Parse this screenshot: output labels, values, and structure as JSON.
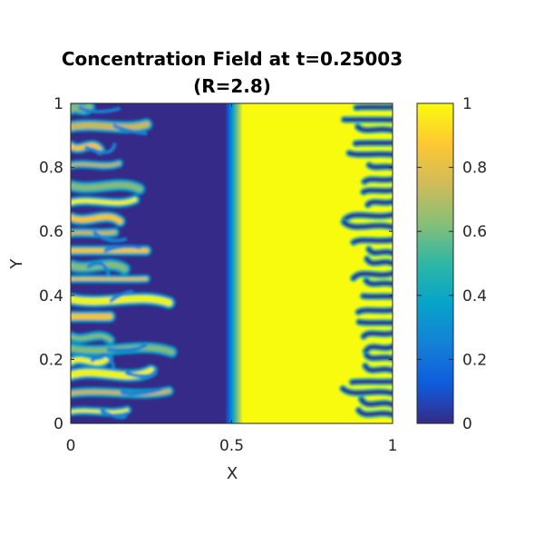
{
  "chart_data": {
    "type": "heatmap",
    "title": "Concentration Field at t=0.25003",
    "subtitle": "(R=2.8)",
    "xlabel": "X",
    "ylabel": "Y",
    "xlim": [
      0,
      1
    ],
    "ylim": [
      0,
      1
    ],
    "xticks": [
      0,
      0.5,
      1
    ],
    "xtick_labels": [
      "0",
      "0.5",
      "1"
    ],
    "yticks": [
      0,
      0.2,
      0.4,
      0.6,
      0.8,
      1
    ],
    "ytick_labels": [
      "0",
      "0.2",
      "0.4",
      "0.6",
      "0.8",
      "1"
    ],
    "colorbar": {
      "range": [
        0,
        1
      ],
      "ticks": [
        0,
        0.2,
        0.4,
        0.6,
        0.8,
        1
      ],
      "tick_labels": [
        "0",
        "0.2",
        "0.4",
        "0.6",
        "0.8",
        "1"
      ],
      "colormap": "parula",
      "colors": [
        "#352a87",
        "#0f5cdd",
        "#1481d6",
        "#06a4ca",
        "#2eb7a4",
        "#87bf77",
        "#d1bb59",
        "#fec832",
        "#f9fb0e"
      ]
    },
    "field_regions": [
      {
        "name": "left fingering zone",
        "x": [
          0,
          0.33
        ],
        "value": "mixed 0-1 fingers"
      },
      {
        "name": "low concentration band",
        "x": [
          0.33,
          0.49
        ],
        "value": 0
      },
      {
        "name": "diffuse front",
        "x": [
          0.49,
          0.53
        ],
        "value": "0 to 1"
      },
      {
        "name": "high concentration band",
        "x": [
          0.53,
          0.85
        ],
        "value": 1
      },
      {
        "name": "right fingering zone",
        "x": [
          0.85,
          1
        ],
        "value": "mixed 0-1 fingers"
      }
    ]
  }
}
